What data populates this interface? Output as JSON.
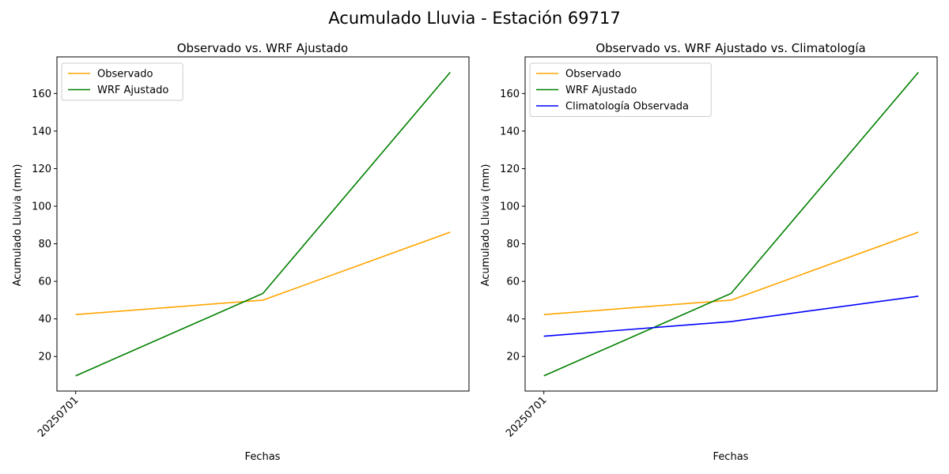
{
  "figure": {
    "title": "Acumulado Lluvia - Estación 69717"
  },
  "chart_data": [
    {
      "type": "line",
      "title": "Observado vs. WRF Ajustado",
      "xlabel": "Fechas",
      "ylabel": "Acumulado Lluvia (mm)",
      "x": [
        0,
        1,
        2
      ],
      "x_tick_labels": [
        {
          "x": 0,
          "label": "20250701"
        }
      ],
      "y_ticks": [
        20,
        40,
        60,
        80,
        100,
        120,
        140,
        160
      ],
      "ylim": [
        1.6,
        179.5
      ],
      "grid": false,
      "legend_position": "upper-left",
      "series": [
        {
          "name": "Observado",
          "color": "#ffa500",
          "values": [
            42.3,
            50.0,
            86.2
          ]
        },
        {
          "name": "WRF Ajustado",
          "color": "#008000",
          "values": [
            9.7,
            53.6,
            171.3
          ]
        }
      ]
    },
    {
      "type": "line",
      "title": "Observado vs. WRF Ajustado vs. Climatología",
      "xlabel": "Fechas",
      "ylabel": "Acumulado Lluvia (mm)",
      "x": [
        0,
        1,
        2
      ],
      "x_tick_labels": [
        {
          "x": 0,
          "label": "20250701"
        }
      ],
      "y_ticks": [
        20,
        40,
        60,
        80,
        100,
        120,
        140,
        160
      ],
      "ylim": [
        1.6,
        179.5
      ],
      "grid": false,
      "legend_position": "upper-left",
      "series": [
        {
          "name": "Observado",
          "color": "#ffa500",
          "values": [
            42.3,
            50.0,
            86.2
          ]
        },
        {
          "name": "WRF Ajustado",
          "color": "#008000",
          "values": [
            9.7,
            53.6,
            171.3
          ]
        },
        {
          "name": "Climatología Observada",
          "color": "#0000ff",
          "values": [
            30.8,
            38.6,
            52.1
          ]
        }
      ]
    }
  ]
}
